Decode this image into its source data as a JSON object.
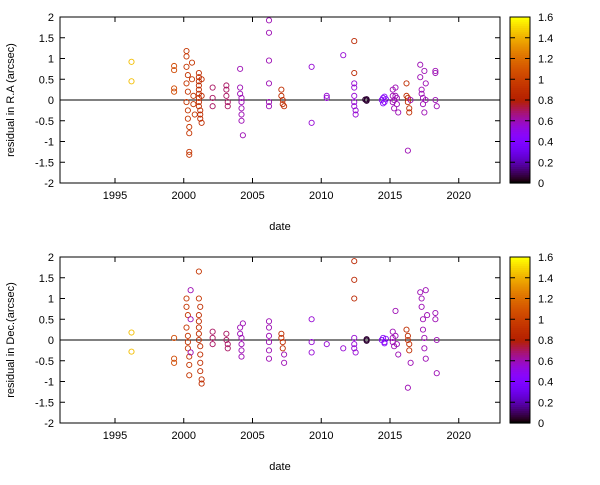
{
  "chart_data": [
    {
      "type": "scatter",
      "xlabel": "date",
      "ylabel": "residual in R.A (arcsec)",
      "xlim": [
        1991,
        2023
      ],
      "ylim": [
        -2,
        2
      ],
      "xticks": [
        "1995",
        "2000",
        "2005",
        "2010",
        "2015",
        "2020"
      ],
      "yticks": [
        "-2",
        "-1.5",
        "-1",
        "-0.5",
        "0",
        "0.5",
        "1",
        "1.5",
        "2"
      ],
      "colorbar": {
        "range": [
          0,
          1.6
        ],
        "ticks": [
          "0",
          "0.2",
          "0.4",
          "0.6",
          "0.8",
          "1",
          "1.2",
          "1.4",
          "1.6"
        ],
        "palette": "black-purple-red-orange-yellow"
      },
      "zero_line": true,
      "grid": false,
      "points": [
        [
          1996.2,
          0.92,
          1.45
        ],
        [
          1996.2,
          0.45,
          1.45
        ],
        [
          1999.3,
          0.82,
          1.05
        ],
        [
          1999.3,
          0.72,
          1.05
        ],
        [
          1999.3,
          0.28,
          1.05
        ],
        [
          1999.3,
          0.2,
          1.05
        ],
        [
          2000.2,
          1.18,
          0.95
        ],
        [
          2000.2,
          1.05,
          0.95
        ],
        [
          2000.2,
          0.8,
          0.95
        ],
        [
          2000.3,
          0.6,
          0.95
        ],
        [
          2000.2,
          0.4,
          0.95
        ],
        [
          2000.3,
          0.2,
          0.95
        ],
        [
          2000.2,
          -0.05,
          0.95
        ],
        [
          2000.3,
          -0.25,
          0.95
        ],
        [
          2000.3,
          -0.45,
          0.95
        ],
        [
          2000.4,
          -0.65,
          0.95
        ],
        [
          2000.4,
          -0.8,
          0.95
        ],
        [
          2000.4,
          -1.25,
          0.95
        ],
        [
          2000.4,
          -1.32,
          0.95
        ],
        [
          2000.6,
          0.9,
          0.95
        ],
        [
          2000.6,
          0.5,
          0.95
        ],
        [
          2000.7,
          0.1,
          0.95
        ],
        [
          2000.7,
          -0.1,
          0.95
        ],
        [
          2000.8,
          -0.35,
          0.95
        ],
        [
          2001.1,
          0.65,
          0.9
        ],
        [
          2001.1,
          0.55,
          0.9
        ],
        [
          2001.1,
          0.45,
          0.9
        ],
        [
          2001.1,
          0.35,
          0.9
        ],
        [
          2001.1,
          0.25,
          0.9
        ],
        [
          2001.1,
          0.15,
          0.9
        ],
        [
          2001.1,
          0.05,
          0.9
        ],
        [
          2001.1,
          -0.05,
          0.9
        ],
        [
          2001.1,
          -0.15,
          0.9
        ],
        [
          2001.2,
          -0.25,
          0.9
        ],
        [
          2001.2,
          -0.35,
          0.9
        ],
        [
          2001.2,
          -0.45,
          0.9
        ],
        [
          2001.3,
          -0.55,
          0.9
        ],
        [
          2001.3,
          0.5,
          0.9
        ],
        [
          2001.3,
          0.1,
          0.9
        ],
        [
          2002.1,
          0.3,
          0.7
        ],
        [
          2002.1,
          0.05,
          0.7
        ],
        [
          2002.1,
          -0.15,
          0.7
        ],
        [
          2003.1,
          0.35,
          0.7
        ],
        [
          2003.1,
          0.25,
          0.7
        ],
        [
          2003.1,
          0.1,
          0.7
        ],
        [
          2003.2,
          -0.05,
          0.7
        ],
        [
          2003.2,
          -0.15,
          0.7
        ],
        [
          2004.1,
          0.75,
          0.6
        ],
        [
          2004.1,
          0.3,
          0.6
        ],
        [
          2004.1,
          0.15,
          0.6
        ],
        [
          2004.2,
          0.05,
          0.6
        ],
        [
          2004.2,
          -0.05,
          0.6
        ],
        [
          2004.2,
          -0.2,
          0.6
        ],
        [
          2004.2,
          -0.35,
          0.6
        ],
        [
          2004.2,
          -0.5,
          0.6
        ],
        [
          2004.3,
          -0.85,
          0.6
        ],
        [
          2006.2,
          1.92,
          0.6
        ],
        [
          2006.2,
          1.62,
          0.6
        ],
        [
          2006.2,
          0.95,
          0.6
        ],
        [
          2006.2,
          0.4,
          0.6
        ],
        [
          2006.2,
          -0.05,
          0.6
        ],
        [
          2006.2,
          -0.15,
          0.6
        ],
        [
          2007.1,
          0.25,
          0.9
        ],
        [
          2007.1,
          0.1,
          0.9
        ],
        [
          2007.2,
          0.0,
          0.9
        ],
        [
          2007.2,
          -0.1,
          0.9
        ],
        [
          2007.3,
          -0.15,
          0.9
        ],
        [
          2009.3,
          0.8,
          0.55
        ],
        [
          2009.3,
          -0.55,
          0.55
        ],
        [
          2010.4,
          0.1,
          0.55
        ],
        [
          2010.4,
          0.05,
          0.55
        ],
        [
          2011.6,
          1.08,
          0.55
        ],
        [
          2012.4,
          1.42,
          0.85
        ],
        [
          2012.4,
          0.65,
          0.85
        ],
        [
          2012.4,
          0.4,
          0.55
        ],
        [
          2012.4,
          0.3,
          0.55
        ],
        [
          2012.4,
          0.1,
          0.55
        ],
        [
          2012.4,
          -0.05,
          0.55
        ],
        [
          2012.4,
          -0.15,
          0.55
        ],
        [
          2012.5,
          -0.25,
          0.55
        ],
        [
          2012.5,
          -0.35,
          0.55
        ],
        [
          2013.3,
          0.0,
          0.05
        ],
        [
          2013.3,
          -0.02,
          0.05
        ],
        [
          2013.3,
          0.02,
          0.05
        ],
        [
          2013.2,
          0.01,
          0.05
        ],
        [
          2014.4,
          0.0,
          0.45
        ],
        [
          2014.5,
          0.05,
          0.45
        ],
        [
          2014.6,
          -0.05,
          0.45
        ],
        [
          2014.7,
          0.02,
          0.45
        ],
        [
          2014.6,
          0.08,
          0.45
        ],
        [
          2014.5,
          -0.08,
          0.45
        ],
        [
          2015.2,
          0.25,
          0.6
        ],
        [
          2015.2,
          0.1,
          0.6
        ],
        [
          2015.2,
          -0.05,
          0.6
        ],
        [
          2015.3,
          -0.2,
          0.6
        ],
        [
          2015.3,
          0.0,
          0.6
        ],
        [
          2015.4,
          0.3,
          0.6
        ],
        [
          2015.4,
          0.1,
          0.6
        ],
        [
          2015.5,
          -0.1,
          0.6
        ],
        [
          2015.5,
          0.05,
          0.6
        ],
        [
          2015.6,
          -0.3,
          0.6
        ],
        [
          2016.2,
          0.4,
          0.9
        ],
        [
          2016.2,
          0.1,
          0.9
        ],
        [
          2016.3,
          0.05,
          0.9
        ],
        [
          2016.3,
          -0.05,
          0.9
        ],
        [
          2016.4,
          -0.2,
          0.9
        ],
        [
          2016.4,
          -0.3,
          0.9
        ],
        [
          2016.3,
          -1.22,
          0.6
        ],
        [
          2016.5,
          0.0,
          0.6
        ],
        [
          2017.2,
          0.85,
          0.6
        ],
        [
          2017.2,
          0.55,
          0.6
        ],
        [
          2017.3,
          0.25,
          0.6
        ],
        [
          2017.3,
          0.15,
          0.6
        ],
        [
          2017.4,
          0.05,
          0.6
        ],
        [
          2017.4,
          -0.1,
          0.6
        ],
        [
          2017.5,
          -0.3,
          0.6
        ],
        [
          2017.5,
          0.7,
          0.6
        ],
        [
          2017.6,
          0.4,
          0.6
        ],
        [
          2017.6,
          0.0,
          0.6
        ],
        [
          2018.3,
          0.7,
          0.6
        ],
        [
          2018.3,
          0.65,
          0.6
        ],
        [
          2018.3,
          0.0,
          0.6
        ],
        [
          2018.4,
          -0.15,
          0.6
        ]
      ]
    },
    {
      "type": "scatter",
      "xlabel": "date",
      "ylabel": "residual in Dec.(arcsec)",
      "xlim": [
        1991,
        2023
      ],
      "ylim": [
        -2,
        2
      ],
      "xticks": [
        "1995",
        "2000",
        "2005",
        "2010",
        "2015",
        "2020"
      ],
      "yticks": [
        "-2",
        "-1.5",
        "-1",
        "-0.5",
        "0",
        "0.5",
        "1",
        "1.5",
        "2"
      ],
      "colorbar": {
        "range": [
          0,
          1.6
        ],
        "ticks": [
          "0",
          "0.2",
          "0.4",
          "0.6",
          "0.8",
          "1",
          "1.2",
          "1.4",
          "1.6"
        ],
        "palette": "black-purple-red-orange-yellow"
      },
      "zero_line": true,
      "grid": false,
      "points": [
        [
          1996.2,
          0.18,
          1.45
        ],
        [
          1996.2,
          -0.28,
          1.45
        ],
        [
          1999.3,
          0.05,
          1.05
        ],
        [
          1999.3,
          -0.45,
          1.05
        ],
        [
          1999.3,
          -0.55,
          1.05
        ],
        [
          2000.2,
          1.0,
          0.95
        ],
        [
          2000.2,
          0.8,
          0.95
        ],
        [
          2000.3,
          0.6,
          0.95
        ],
        [
          2000.2,
          0.3,
          0.95
        ],
        [
          2000.3,
          0.1,
          0.95
        ],
        [
          2000.3,
          -0.05,
          0.95
        ],
        [
          2000.3,
          -0.2,
          0.95
        ],
        [
          2000.4,
          -0.4,
          0.95
        ],
        [
          2000.4,
          -0.6,
          0.95
        ],
        [
          2000.4,
          -0.85,
          0.95
        ],
        [
          2000.5,
          1.2,
          0.6
        ],
        [
          2000.5,
          0.5,
          0.6
        ],
        [
          2000.5,
          -0.3,
          0.6
        ],
        [
          2001.1,
          1.65,
          0.95
        ],
        [
          2001.1,
          1.0,
          0.95
        ],
        [
          2001.1,
          0.6,
          0.9
        ],
        [
          2001.1,
          0.45,
          0.9
        ],
        [
          2001.1,
          0.3,
          0.9
        ],
        [
          2001.1,
          0.15,
          0.9
        ],
        [
          2001.1,
          0.0,
          0.9
        ],
        [
          2001.2,
          -0.15,
          0.9
        ],
        [
          2001.2,
          -0.35,
          0.9
        ],
        [
          2001.2,
          -0.55,
          0.9
        ],
        [
          2001.2,
          -0.75,
          0.9
        ],
        [
          2001.3,
          -0.95,
          0.9
        ],
        [
          2001.3,
          -1.05,
          0.9
        ],
        [
          2001.2,
          0.8,
          0.9
        ],
        [
          2002.1,
          0.2,
          0.7
        ],
        [
          2002.1,
          0.05,
          0.7
        ],
        [
          2002.1,
          -0.1,
          0.7
        ],
        [
          2003.1,
          0.15,
          0.7
        ],
        [
          2003.1,
          0.0,
          0.7
        ],
        [
          2003.2,
          -0.1,
          0.7
        ],
        [
          2003.2,
          -0.2,
          0.7
        ],
        [
          2004.1,
          0.3,
          0.6
        ],
        [
          2004.1,
          0.15,
          0.6
        ],
        [
          2004.2,
          0.05,
          0.6
        ],
        [
          2004.2,
          -0.1,
          0.6
        ],
        [
          2004.2,
          -0.25,
          0.6
        ],
        [
          2004.2,
          -0.4,
          0.6
        ],
        [
          2004.3,
          0.4,
          0.6
        ],
        [
          2006.2,
          0.45,
          0.6
        ],
        [
          2006.2,
          0.3,
          0.6
        ],
        [
          2006.2,
          0.1,
          0.6
        ],
        [
          2006.2,
          -0.05,
          0.6
        ],
        [
          2006.2,
          -0.25,
          0.6
        ],
        [
          2006.2,
          -0.45,
          0.6
        ],
        [
          2007.1,
          0.15,
          0.9
        ],
        [
          2007.1,
          0.05,
          0.9
        ],
        [
          2007.2,
          -0.05,
          0.9
        ],
        [
          2007.2,
          -0.2,
          0.9
        ],
        [
          2007.3,
          -0.35,
          0.6
        ],
        [
          2007.3,
          -0.55,
          0.6
        ],
        [
          2009.3,
          0.5,
          0.55
        ],
        [
          2009.3,
          -0.05,
          0.55
        ],
        [
          2009.3,
          -0.3,
          0.55
        ],
        [
          2010.4,
          -0.1,
          0.55
        ],
        [
          2011.6,
          -0.2,
          0.55
        ],
        [
          2012.4,
          1.9,
          0.85
        ],
        [
          2012.4,
          1.45,
          0.85
        ],
        [
          2012.4,
          1.0,
          0.85
        ],
        [
          2012.4,
          0.05,
          0.55
        ],
        [
          2012.4,
          -0.1,
          0.55
        ],
        [
          2012.4,
          -0.2,
          0.55
        ],
        [
          2012.5,
          -0.3,
          0.55
        ],
        [
          2013.3,
          0.0,
          0.05
        ],
        [
          2013.3,
          0.02,
          0.05
        ],
        [
          2013.3,
          -0.02,
          0.05
        ],
        [
          2014.4,
          0.0,
          0.45
        ],
        [
          2014.5,
          0.05,
          0.45
        ],
        [
          2014.6,
          -0.05,
          0.45
        ],
        [
          2014.7,
          0.03,
          0.45
        ],
        [
          2014.6,
          -0.08,
          0.45
        ],
        [
          2015.2,
          0.2,
          0.6
        ],
        [
          2015.2,
          0.05,
          0.6
        ],
        [
          2015.2,
          -0.05,
          0.6
        ],
        [
          2015.3,
          -0.15,
          0.6
        ],
        [
          2015.4,
          0.1,
          0.6
        ],
        [
          2015.5,
          -0.1,
          0.6
        ],
        [
          2015.4,
          0.7,
          0.6
        ],
        [
          2015.6,
          -0.35,
          0.6
        ],
        [
          2016.2,
          0.25,
          0.9
        ],
        [
          2016.3,
          0.1,
          0.9
        ],
        [
          2016.3,
          0.0,
          0.9
        ],
        [
          2016.4,
          -0.1,
          0.9
        ],
        [
          2016.4,
          -0.25,
          0.9
        ],
        [
          2016.3,
          -1.15,
          0.6
        ],
        [
          2016.5,
          -0.55,
          0.6
        ],
        [
          2017.2,
          1.15,
          0.6
        ],
        [
          2017.3,
          1.0,
          0.6
        ],
        [
          2017.3,
          0.8,
          0.6
        ],
        [
          2017.4,
          0.5,
          0.6
        ],
        [
          2017.4,
          0.25,
          0.6
        ],
        [
          2017.5,
          0.05,
          0.6
        ],
        [
          2017.5,
          -0.2,
          0.6
        ],
        [
          2017.6,
          -0.45,
          0.6
        ],
        [
          2017.6,
          1.2,
          0.6
        ],
        [
          2017.7,
          0.6,
          0.6
        ],
        [
          2018.3,
          0.65,
          0.6
        ],
        [
          2018.3,
          0.5,
          0.6
        ],
        [
          2018.4,
          0.0,
          0.6
        ],
        [
          2018.4,
          -0.8,
          0.6
        ]
      ]
    }
  ]
}
